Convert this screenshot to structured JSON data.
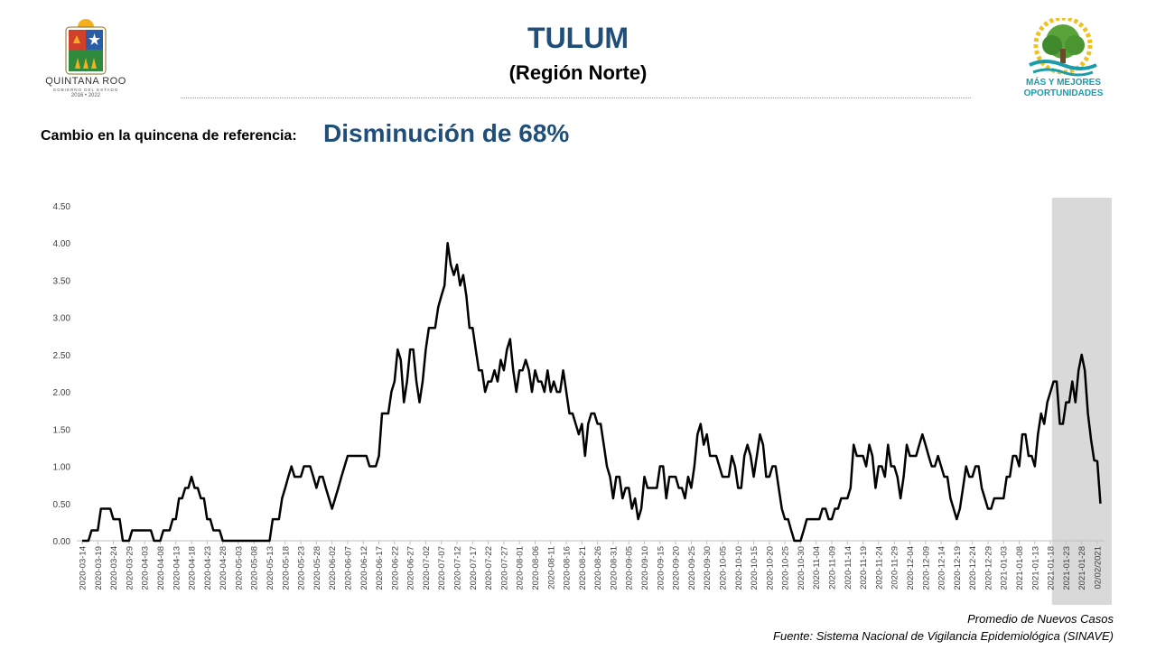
{
  "header": {
    "title": "TULUM",
    "subtitle": "(Región Norte)",
    "reference_label": "Cambio en la quincena de referencia:",
    "reference_value": "Disminución de 68%"
  },
  "logos": {
    "left": {
      "org_name": "QUINTANA ROO",
      "gob_text": "GOBIERNO DEL ESTADO",
      "years": "2016 • 2022",
      "icon": "coat-of-arms-icon"
    },
    "right": {
      "slogan_line1": "MÁS Y MEJORES",
      "slogan_line2": "OPORTUNIDADES",
      "icon": "tree-icon",
      "color": "#1a9cab"
    }
  },
  "footer": {
    "series_label": "Promedio de Nuevos Casos",
    "source": "Fuente: Sistema Nacional de Vigilancia Epidemiológica (SINAVE)"
  },
  "chart_data": {
    "type": "line",
    "title": "",
    "xlabel": "",
    "ylabel": "",
    "ylim": [
      0,
      4.5
    ],
    "y_ticks": [
      "0.00",
      "0.50",
      "1.00",
      "1.50",
      "2.00",
      "2.50",
      "3.00",
      "3.50",
      "4.00",
      "4.50"
    ],
    "x_tick_labels": [
      "2020-03-14",
      "2020-03-19",
      "2020-03-24",
      "2020-03-29",
      "2020-04-03",
      "2020-04-08",
      "2020-04-13",
      "2020-04-18",
      "2020-04-23",
      "2020-04-28",
      "2020-05-03",
      "2020-05-08",
      "2020-05-13",
      "2020-05-18",
      "2020-05-23",
      "2020-05-28",
      "2020-06-02",
      "2020-06-07",
      "2020-06-12",
      "2020-06-17",
      "2020-06-22",
      "2020-06-27",
      "2020-07-02",
      "2020-07-07",
      "2020-07-12",
      "2020-07-17",
      "2020-07-22",
      "2020-07-27",
      "2020-08-01",
      "2020-08-06",
      "2020-08-11",
      "2020-08-16",
      "2020-08-21",
      "2020-08-26",
      "2020-08-31",
      "2020-09-05",
      "2020-09-10",
      "2020-09-15",
      "2020-09-20",
      "2020-09-25",
      "2020-09-30",
      "2020-10-05",
      "2020-10-10",
      "2020-10-15",
      "2020-10-20",
      "2020-10-25",
      "2020-10-30",
      "2020-11-04",
      "2020-11-09",
      "2020-11-14",
      "2020-11-19",
      "2020-11-24",
      "2020-11-29",
      "2020-12-04",
      "2020-12-09",
      "2020-12-14",
      "2020-12-19",
      "2020-12-24",
      "2020-12-29",
      "2021-01-03",
      "2021-01-08",
      "2021-01-13",
      "2021-01-18",
      "2021-01-23",
      "2021-01-28",
      "02/02/2021"
    ],
    "x_tick_index": [
      0,
      5,
      10,
      15,
      20,
      25,
      30,
      35,
      40,
      45,
      50,
      55,
      60,
      65,
      70,
      75,
      80,
      85,
      90,
      95,
      100,
      105,
      110,
      115,
      120,
      125,
      130,
      135,
      140,
      145,
      150,
      155,
      160,
      165,
      170,
      175,
      180,
      185,
      190,
      195,
      200,
      205,
      210,
      215,
      220,
      225,
      230,
      235,
      240,
      245,
      250,
      255,
      260,
      265,
      270,
      275,
      280,
      285,
      290,
      295,
      300,
      305,
      310,
      315,
      320,
      325
    ],
    "x_start": "2020-03-14",
    "x_end": "2021-02-02",
    "shaded_range": [
      "2021-01-19",
      "2021-02-02"
    ],
    "shade_color": "#d9d9d9",
    "line_color": "#000000",
    "series": [
      {
        "values_start": "2020-03-14",
        "values": [
          0,
          0,
          0,
          0.14,
          0.14,
          0.14,
          0.43,
          0.43,
          0.43,
          0.43,
          0.29,
          0.29,
          0.29,
          0,
          0,
          0,
          0.14,
          0.14,
          0.14,
          0.14,
          0.14,
          0.14,
          0.14,
          0,
          0,
          0,
          0.14,
          0.14,
          0.14,
          0.29,
          0.29,
          0.57,
          0.57,
          0.71,
          0.71,
          0.86,
          0.71,
          0.71,
          0.57,
          0.57,
          0.29,
          0.29,
          0.14,
          0.14,
          0.14,
          0,
          0,
          0,
          0,
          0,
          0,
          0,
          0,
          0,
          0,
          0,
          0,
          0,
          0,
          0,
          0,
          0.29,
          0.29,
          0.29,
          0.57,
          0.71,
          0.86,
          1.0,
          0.86,
          0.86,
          0.86,
          1.0,
          1.0,
          1.0,
          0.86,
          0.71,
          0.86,
          0.86,
          0.71,
          0.57,
          0.43,
          0.57,
          0.71,
          0.86,
          1.0,
          1.14,
          1.14,
          1.14,
          1.14,
          1.14,
          1.14,
          1.14,
          1.0,
          1.0,
          1.0,
          1.14,
          1.71,
          1.71,
          1.71,
          2.0,
          2.14,
          2.57,
          2.43,
          1.86,
          2.14,
          2.57,
          2.57,
          2.14,
          1.86,
          2.14,
          2.57,
          2.86,
          2.86,
          2.86,
          3.14,
          3.29,
          3.43,
          4.0,
          3.71,
          3.57,
          3.71,
          3.43,
          3.57,
          3.29,
          2.86,
          2.86,
          2.57,
          2.29,
          2.29,
          2.0,
          2.14,
          2.14,
          2.29,
          2.14,
          2.43,
          2.29,
          2.57,
          2.71,
          2.29,
          2.0,
          2.29,
          2.29,
          2.43,
          2.29,
          2.0,
          2.29,
          2.14,
          2.14,
          2.0,
          2.29,
          2.0,
          2.14,
          2.0,
          2.0,
          2.29,
          2.0,
          1.71,
          1.71,
          1.57,
          1.43,
          1.57,
          1.14,
          1.57,
          1.71,
          1.71,
          1.57,
          1.57,
          1.29,
          1.0,
          0.86,
          0.57,
          0.86,
          0.86,
          0.57,
          0.71,
          0.71,
          0.43,
          0.57,
          0.29,
          0.43,
          0.86,
          0.71,
          0.71,
          0.71,
          0.71,
          1.0,
          1.0,
          0.57,
          0.86,
          0.86,
          0.86,
          0.71,
          0.71,
          0.57,
          0.86,
          0.71,
          1.0,
          1.43,
          1.57,
          1.29,
          1.43,
          1.14,
          1.14,
          1.14,
          1.0,
          0.86,
          0.86,
          0.86,
          1.14,
          1.0,
          0.71,
          0.71,
          1.14,
          1.29,
          1.14,
          0.86,
          1.14,
          1.43,
          1.29,
          0.86,
          0.86,
          1.0,
          1.0,
          0.71,
          0.43,
          0.29,
          0.29,
          0.14,
          0,
          0,
          0,
          0.14,
          0.29,
          0.29,
          0.29,
          0.29,
          0.29,
          0.43,
          0.43,
          0.29,
          0.29,
          0.43,
          0.43,
          0.57,
          0.57,
          0.57,
          0.71,
          1.29,
          1.14,
          1.14,
          1.14,
          1.0,
          1.29,
          1.14,
          0.71,
          1.0,
          1.0,
          0.86,
          1.29,
          1.0,
          1.0,
          0.86,
          0.57,
          0.86,
          1.29,
          1.14,
          1.14,
          1.14,
          1.29,
          1.43,
          1.29,
          1.14,
          1.0,
          1.0,
          1.14,
          1.0,
          0.86,
          0.86,
          0.57,
          0.43,
          0.29,
          0.43,
          0.71,
          1.0,
          0.86,
          0.86,
          1.0,
          1.0,
          0.71,
          0.57,
          0.43,
          0.43,
          0.57,
          0.57,
          0.57,
          0.57,
          0.86,
          0.86,
          1.14,
          1.14,
          1.0,
          1.43,
          1.43,
          1.14,
          1.14,
          1.0,
          1.43,
          1.71,
          1.57,
          1.86,
          2.0,
          2.14,
          2.14,
          1.57,
          1.57,
          1.86,
          1.86,
          2.14,
          1.86,
          2.29,
          2.5,
          2.29,
          1.71,
          1.36,
          1.08,
          1.07,
          0.5
        ]
      }
    ]
  }
}
